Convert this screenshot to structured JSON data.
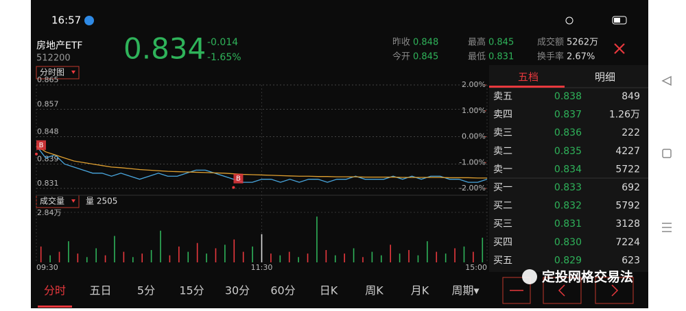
{
  "status_bar": {
    "time": "16:57"
  },
  "quote": {
    "name": "房地产ETF",
    "code": "512200",
    "price": "0.834",
    "change": "-0.014",
    "change_pct": "-1.65%"
  },
  "stats": [
    {
      "label": "昨收",
      "value": "0.848"
    },
    {
      "label": "今开",
      "value": "0.845"
    },
    {
      "label": "最高",
      "value": "0.845"
    },
    {
      "label": "最低",
      "value": "0.831"
    },
    {
      "label": "成交额",
      "value": "5262万"
    },
    {
      "label": "换手率",
      "value": "2.67%"
    }
  ],
  "chart_tab": "分时图",
  "price_chart": {
    "type": "line",
    "xlim": [
      0,
      48
    ],
    "xticks": [
      {
        "value": 0,
        "label": "09:30"
      },
      {
        "value": 24,
        "label": "11:30"
      },
      {
        "value": 48,
        "label": "15:00"
      }
    ],
    "ylim": [
      0.831,
      0.865
    ],
    "yticks": [
      0.865,
      0.857,
      0.848,
      0.839,
      0.831
    ],
    "y2lim": [
      -2,
      2
    ],
    "y2ticks": [
      {
        "value": 2,
        "label": "2.00%"
      },
      {
        "value": 1,
        "label": "1.00%"
      },
      {
        "value": 0,
        "label": "0.00%"
      },
      {
        "value": -1,
        "label": "-1.00%"
      },
      {
        "value": -2,
        "label": "-2.00%"
      }
    ],
    "grid": true,
    "series": [
      {
        "color": "#4aa8e0",
        "values": [
          0.845,
          0.841,
          0.842,
          0.839,
          0.838,
          0.837,
          0.836,
          0.836,
          0.835,
          0.836,
          0.835,
          0.834,
          0.835,
          0.836,
          0.835,
          0.835,
          0.836,
          0.837,
          0.837,
          0.836,
          0.835,
          0.834,
          0.833,
          0.833,
          0.834,
          0.834,
          0.833,
          0.834,
          0.833,
          0.834,
          0.834,
          0.833,
          0.834,
          0.834,
          0.835,
          0.834,
          0.834,
          0.834,
          0.835,
          0.834,
          0.835,
          0.834,
          0.835,
          0.835,
          0.834,
          0.834,
          0.833,
          0.833,
          0.834
        ]
      },
      {
        "color": "#e0a030",
        "values": [
          0.845,
          0.843,
          0.842,
          0.841,
          0.84,
          0.8395,
          0.839,
          0.8385,
          0.838,
          0.8378,
          0.8375,
          0.8372,
          0.837,
          0.8368,
          0.8366,
          0.8365,
          0.8364,
          0.8363,
          0.8362,
          0.8361,
          0.836,
          0.8358,
          0.8356,
          0.8355,
          0.8354,
          0.8353,
          0.8352,
          0.8351,
          0.835,
          0.835,
          0.8349,
          0.8349,
          0.8348,
          0.8348,
          0.8348,
          0.8347,
          0.8347,
          0.8347,
          0.8347,
          0.8346,
          0.8346,
          0.8346,
          0.8346,
          0.8346,
          0.8345,
          0.8345,
          0.8345,
          0.8344,
          0.8344
        ]
      }
    ],
    "annotations": [
      {
        "label": "B",
        "x": 0,
        "y": 0.845
      },
      {
        "label": "B",
        "x": 21,
        "y": 0.834
      }
    ]
  },
  "volume_chart": {
    "type": "bar",
    "tab": "成交量",
    "current": "量 2505",
    "ylim": [
      0,
      28400
    ],
    "yticks": [
      {
        "value": 28400,
        "label": "2.84万"
      }
    ],
    "values": [
      9000,
      4000,
      6000,
      12000,
      5000,
      3000,
      8000,
      4000,
      15000,
      6000,
      3000,
      5000,
      7000,
      18000,
      4000,
      9000,
      6000,
      11000,
      5000,
      8000,
      10000,
      13000,
      6000,
      9000,
      16000,
      5000,
      4000,
      6000,
      3000,
      5000,
      26000,
      7000,
      4000,
      5000,
      8000,
      3000,
      6000,
      4000,
      10000,
      5000,
      7000,
      4000,
      12000,
      6000,
      5000,
      8000,
      9000,
      6000,
      14000
    ],
    "colors": [
      "#e8383d",
      "#2fb35a",
      "#e8383d",
      "#2fb35a",
      "#e8383d",
      "#2fb35a",
      "#2fb35a",
      "#e8383d",
      "#2fb35a",
      "#e8383d",
      "#2fb35a",
      "#e8383d",
      "#2fb35a",
      "#2fb35a",
      "#e8383d",
      "#e8383d",
      "#2fb35a",
      "#e8383d",
      "#2fb35a",
      "#e8383d",
      "#2fb35a",
      "#e8383d",
      "#e8383d",
      "#2fb35a",
      "#dddddd",
      "#e8383d",
      "#2fb35a",
      "#e8383d",
      "#2fb35a",
      "#e8383d",
      "#2fb35a",
      "#e8383d",
      "#2fb35a",
      "#e8383d",
      "#2fb35a",
      "#e8383d",
      "#2fb35a",
      "#2fb35a",
      "#e8383d",
      "#2fb35a",
      "#e8383d",
      "#2fb35a",
      "#2fb35a",
      "#e8383d",
      "#2fb35a",
      "#e8383d",
      "#2fb35a",
      "#e8383d",
      "#2fb35a"
    ]
  },
  "order_book": {
    "tabs": [
      "五档",
      "明细"
    ],
    "rows": [
      {
        "label": "卖五",
        "price": "0.838",
        "volume": "849"
      },
      {
        "label": "卖四",
        "price": "0.837",
        "volume": "1.26万"
      },
      {
        "label": "卖三",
        "price": "0.836",
        "volume": "222"
      },
      {
        "label": "卖二",
        "price": "0.835",
        "volume": "4227"
      },
      {
        "label": "卖一",
        "price": "0.834",
        "volume": "5722"
      },
      {
        "label": "买一",
        "price": "0.833",
        "volume": "692"
      },
      {
        "label": "买二",
        "price": "0.832",
        "volume": "5792"
      },
      {
        "label": "买三",
        "price": "0.831",
        "volume": "3128"
      },
      {
        "label": "买四",
        "price": "0.830",
        "volume": "7224"
      },
      {
        "label": "买五",
        "price": "0.829",
        "volume": "623"
      }
    ]
  },
  "period_tabs": [
    "分时",
    "五日",
    "5分",
    "15分",
    "30分",
    "60分",
    "日K",
    "周K",
    "月K",
    "周期▾"
  ],
  "watermark": "定投网格交易法"
}
